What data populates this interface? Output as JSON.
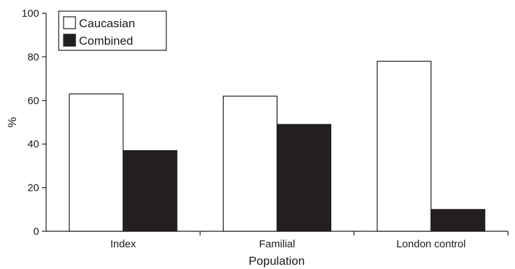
{
  "chart_data": {
    "type": "bar",
    "categories": [
      "Index",
      "Familial",
      "London control"
    ],
    "series": [
      {
        "name": "Caucasian",
        "values": [
          63,
          62,
          78
        ],
        "color": "#ffffff"
      },
      {
        "name": "Combined",
        "values": [
          37,
          49,
          10
        ],
        "color": "#231f20"
      }
    ],
    "xlabel": "Population",
    "ylabel": "%",
    "ylim": [
      0,
      100
    ],
    "yticks": [
      "0",
      "20",
      "40",
      "60",
      "80",
      "100"
    ],
    "grid": false,
    "legend_position": "top-left"
  }
}
